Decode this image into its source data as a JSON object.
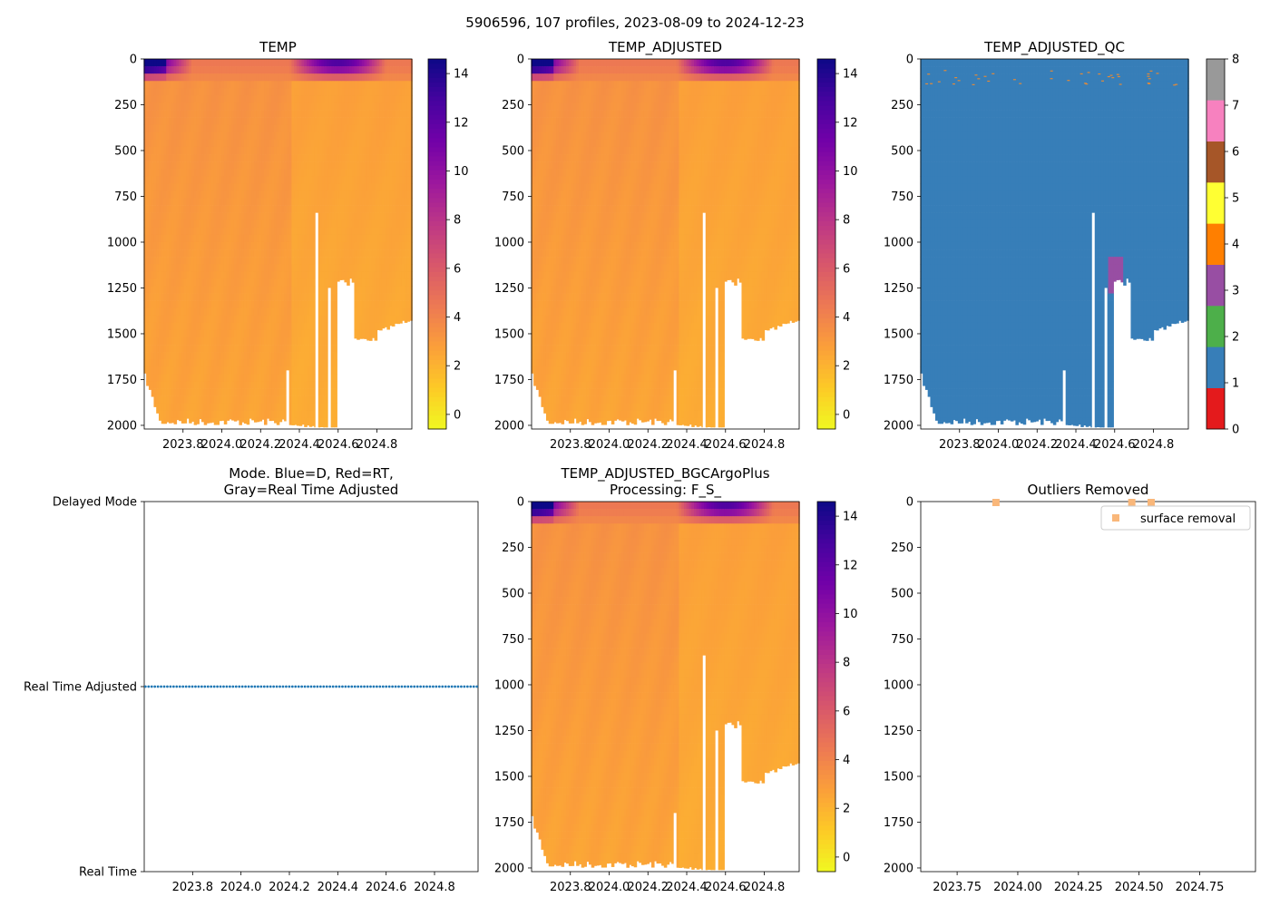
{
  "figure": {
    "suptitle": "5906596, 107 profiles, 2023-08-09 to 2024-12-23"
  },
  "colors": {
    "temp_colormap": [
      "#f0f921",
      "#fdca26",
      "#fb9f3a",
      "#ed7953",
      "#d8576b",
      "#bd3786",
      "#9c179e",
      "#7201a8",
      "#46039f",
      "#0d0887"
    ],
    "qc_flags": [
      "#e41a1c",
      "#377eb8",
      "#4daf4a",
      "#984ea3",
      "#ff7f00",
      "#ffff33",
      "#a65628",
      "#f781bf",
      "#999999"
    ],
    "mode_marker": "#1f77b4",
    "outlier_marker": "#f9b77a"
  },
  "chart_data": [
    {
      "id": "temp",
      "type": "heatmap",
      "title": "TEMP",
      "x_ticks": [
        "2023.8",
        "2024.0",
        "2024.2",
        "2024.4",
        "2024.6",
        "2024.8"
      ],
      "xlim": [
        2023.6,
        2024.98
      ],
      "y_ticks": [
        "0",
        "250",
        "500",
        "750",
        "1000",
        "1250",
        "1500",
        "1750",
        "2000"
      ],
      "ylim": [
        2020,
        0
      ],
      "colorbar": {
        "ticks": [
          "0",
          "2",
          "4",
          "6",
          "8",
          "10",
          "12",
          "14"
        ],
        "range": [
          -0.6,
          14.6
        ]
      },
      "summary": {
        "surface_warm_upto_c": 14.5,
        "layer_3c_until_year": 2024.35,
        "deep_c": 2.6
      }
    },
    {
      "id": "temp_adjusted",
      "type": "heatmap",
      "title": "TEMP_ADJUSTED",
      "x_ticks": [
        "2023.8",
        "2024.0",
        "2024.2",
        "2024.4",
        "2024.6",
        "2024.8"
      ],
      "xlim": [
        2023.6,
        2024.98
      ],
      "y_ticks": [
        "0",
        "250",
        "500",
        "750",
        "1000",
        "1250",
        "1500",
        "1750",
        "2000"
      ],
      "ylim": [
        2020,
        0
      ],
      "colorbar": {
        "ticks": [
          "0",
          "2",
          "4",
          "6",
          "8",
          "10",
          "12",
          "14"
        ],
        "range": [
          -0.6,
          14.6
        ]
      }
    },
    {
      "id": "temp_adjusted_qc",
      "type": "heatmap",
      "title": "TEMP_ADJUSTED_QC",
      "x_ticks": [
        "2023.8",
        "2024.0",
        "2024.2",
        "2024.4",
        "2024.6",
        "2024.8"
      ],
      "xlim": [
        2023.6,
        2024.98
      ],
      "y_ticks": [
        "0",
        "250",
        "500",
        "750",
        "1000",
        "1250",
        "1500",
        "1750",
        "2000"
      ],
      "ylim": [
        2020,
        0
      ],
      "colorbar": {
        "ticks": [
          "0",
          "1",
          "2",
          "3",
          "4",
          "5",
          "6",
          "7",
          "8"
        ],
        "range": [
          0,
          8
        ]
      },
      "dominant_flag": 1,
      "flag3_patch": {
        "x": [
          2024.57,
          2024.65
        ],
        "depth": [
          1100,
          1250
        ]
      }
    },
    {
      "id": "mode",
      "type": "scatter",
      "title": "Mode. Blue=D, Red=RT,",
      "subtitle": "Gray=Real Time Adjusted",
      "x_ticks": [
        "2023.8",
        "2024.0",
        "2024.2",
        "2024.4",
        "2024.6",
        "2024.8"
      ],
      "xlim": [
        2023.6,
        2024.98
      ],
      "y_ticks": [
        "Delayed Mode",
        "Real Time Adjusted",
        "Real Time"
      ],
      "y_value": "Real Time Adjusted",
      "point_count": 107
    },
    {
      "id": "bgc",
      "type": "heatmap",
      "title": "TEMP_ADJUSTED_BGCArgoPlus",
      "subtitle": "Processing: F_S_",
      "x_ticks": [
        "2023.8",
        "2024.0",
        "2024.2",
        "2024.4",
        "2024.6",
        "2024.8"
      ],
      "xlim": [
        2023.6,
        2024.98
      ],
      "y_ticks": [
        "0",
        "250",
        "500",
        "750",
        "1000",
        "1250",
        "1500",
        "1750",
        "2000"
      ],
      "ylim": [
        2020,
        0
      ],
      "colorbar": {
        "ticks": [
          "0",
          "2",
          "4",
          "6",
          "8",
          "10",
          "12",
          "14"
        ],
        "range": [
          -0.6,
          14.6
        ]
      }
    },
    {
      "id": "outliers",
      "type": "scatter",
      "title": "Outliers Removed",
      "x_ticks": [
        "2023.75",
        "2024.00",
        "2024.25",
        "2024.50",
        "2024.75"
      ],
      "x_tick_values": [
        2023.75,
        2024.0,
        2024.25,
        2024.5,
        2024.75
      ],
      "xlim": [
        2023.6,
        2024.98
      ],
      "y_ticks": [
        "0",
        "250",
        "500",
        "750",
        "1000",
        "1250",
        "1500",
        "1750",
        "2000"
      ],
      "ylim": [
        2020,
        0
      ],
      "legend": {
        "label": "surface removal",
        "placement": "top-right"
      },
      "points": [
        {
          "x": 2023.91,
          "y": 5
        },
        {
          "x": 2024.47,
          "y": 5
        },
        {
          "x": 2024.55,
          "y": 5
        }
      ]
    }
  ]
}
